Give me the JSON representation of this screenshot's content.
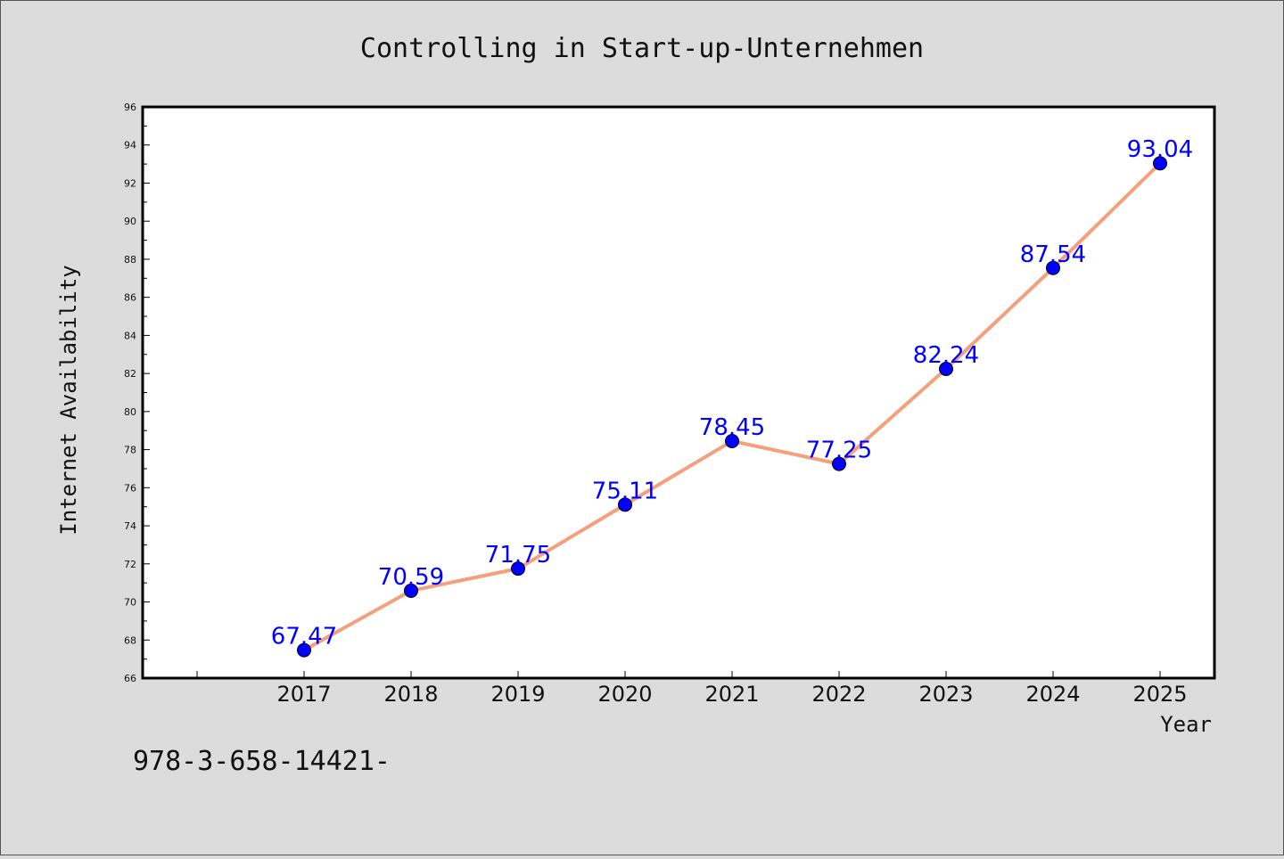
{
  "chart_data": {
    "type": "line",
    "title": "Controlling in Start-up-Unternehmen",
    "xlabel": "Year",
    "ylabel": "Internet Availability",
    "categories": [
      "2017",
      "2018",
      "2019",
      "2020",
      "2021",
      "2022",
      "2023",
      "2024",
      "2025"
    ],
    "series": [
      {
        "values": [
          67.47,
          70.59,
          71.75,
          75.11,
          78.45,
          77.25,
          82.24,
          87.54,
          93.04
        ],
        "line_color": "#f4a07c",
        "marker_color": "#0000ff"
      }
    ],
    "data_labels": [
      "67.47",
      "70.59",
      "71.75",
      "75.11",
      "78.45",
      "77.25",
      "82.24",
      "87.54",
      "93.04"
    ],
    "data_label_color": "#0000ff",
    "ylim": [
      66,
      96
    ],
    "yticks": [
      "66",
      "68",
      "70",
      "72",
      "74",
      "76",
      "78",
      "80",
      "82",
      "84",
      "86",
      "88",
      "90",
      "92",
      "94",
      "96"
    ],
    "grid": false,
    "legend": "none"
  },
  "footnote": "978-3-658-14421-"
}
